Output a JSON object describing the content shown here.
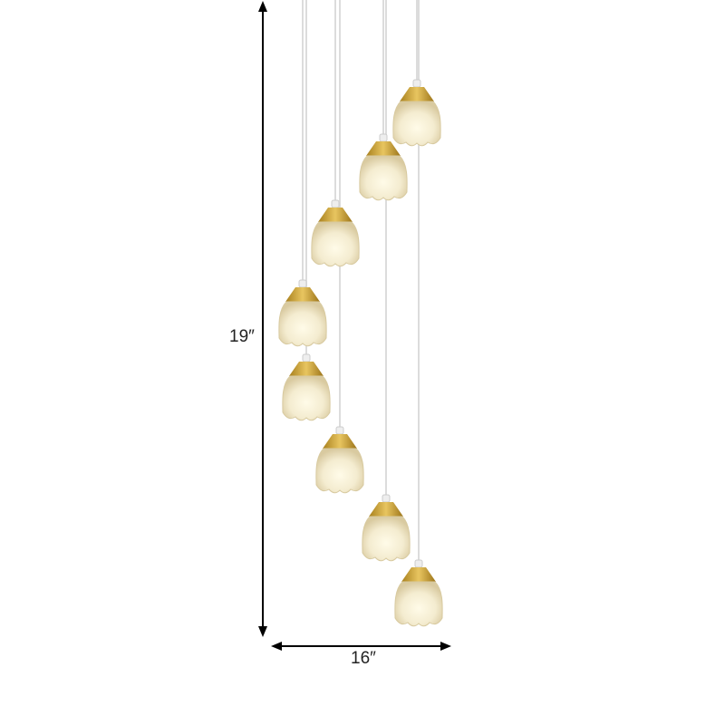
{
  "product": {
    "pendant_count": 8,
    "colors": {
      "glass": "#f4ecd2",
      "cap": "#c9a23a",
      "cord": "#e2e2e2"
    }
  },
  "dimensions": {
    "height_label": "19″",
    "width_label": "16″"
  }
}
